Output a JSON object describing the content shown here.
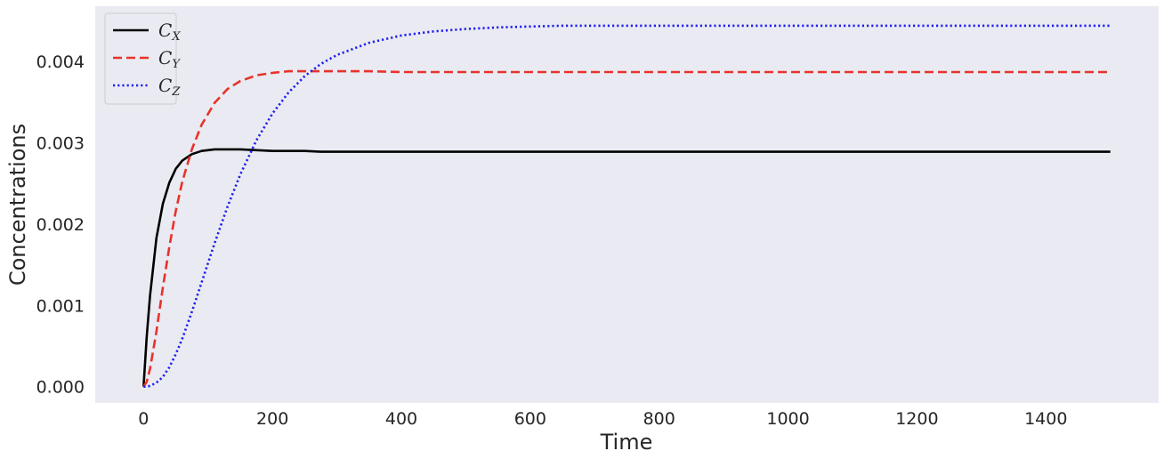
{
  "chart_data": {
    "type": "line",
    "title": "",
    "xlabel": "Time",
    "ylabel": "Concentrations",
    "xlim": [
      -75,
      1575
    ],
    "ylim": [
      -0.0002,
      0.00468
    ],
    "xticks": [
      0,
      200,
      400,
      600,
      800,
      1000,
      1200,
      1400
    ],
    "xtick_labels": [
      "0",
      "200",
      "400",
      "600",
      "800",
      "1000",
      "1200",
      "1400"
    ],
    "yticks": [
      0.0,
      0.001,
      0.002,
      0.003,
      0.004
    ],
    "ytick_labels": [
      "0.000",
      "0.001",
      "0.002",
      "0.003",
      "0.004"
    ],
    "grid": false,
    "background": "#eaeaf2",
    "legend_position": "top-left",
    "x": [
      0,
      5,
      10,
      20,
      30,
      40,
      50,
      60,
      75,
      90,
      110,
      130,
      150,
      175,
      200,
      225,
      250,
      275,
      300,
      350,
      400,
      450,
      500,
      550,
      600,
      650,
      700,
      800,
      900,
      1000,
      1100,
      1200,
      1300,
      1400,
      1500
    ],
    "series": [
      {
        "name": "C",
        "subscript": "X",
        "color": "#000000",
        "dash": "solid",
        "values": [
          0.0,
          0.00062,
          0.00112,
          0.00183,
          0.00225,
          0.00251,
          0.00268,
          0.00278,
          0.00286,
          0.0029,
          0.00292,
          0.00292,
          0.00292,
          0.00291,
          0.0029,
          0.0029,
          0.0029,
          0.00289,
          0.00289,
          0.00289,
          0.00289,
          0.00289,
          0.00289,
          0.00289,
          0.00289,
          0.00289,
          0.00289,
          0.00289,
          0.00289,
          0.00289,
          0.00289,
          0.00289,
          0.00289,
          0.00289,
          0.00289
        ]
      },
      {
        "name": "C",
        "subscript": "Y",
        "color": "#e8322b",
        "dash": "dashed",
        "values": [
          0.0,
          6e-05,
          0.00022,
          0.00068,
          0.00122,
          0.00172,
          0.00216,
          0.00252,
          0.00292,
          0.00322,
          0.00349,
          0.00366,
          0.00376,
          0.00383,
          0.00386,
          0.00388,
          0.00388,
          0.00388,
          0.00388,
          0.00388,
          0.00387,
          0.00387,
          0.00387,
          0.00387,
          0.00387,
          0.00387,
          0.00387,
          0.00387,
          0.00387,
          0.00387,
          0.00387,
          0.00387,
          0.00387,
          0.00387,
          0.00387
        ]
      },
      {
        "name": "C",
        "subscript": "Z",
        "color": "#1f1fef",
        "dash": "dotted",
        "values": [
          0.0,
          0.0,
          1e-05,
          5e-05,
          0.00012,
          0.00024,
          0.0004,
          0.00059,
          0.00092,
          0.00128,
          0.00176,
          0.00221,
          0.00261,
          0.00303,
          0.00336,
          0.00362,
          0.00382,
          0.00397,
          0.00408,
          0.00423,
          0.00432,
          0.00437,
          0.0044,
          0.00442,
          0.00443,
          0.00444,
          0.00444,
          0.00444,
          0.00444,
          0.00444,
          0.00444,
          0.00444,
          0.00444,
          0.00444,
          0.00444
        ]
      }
    ]
  }
}
